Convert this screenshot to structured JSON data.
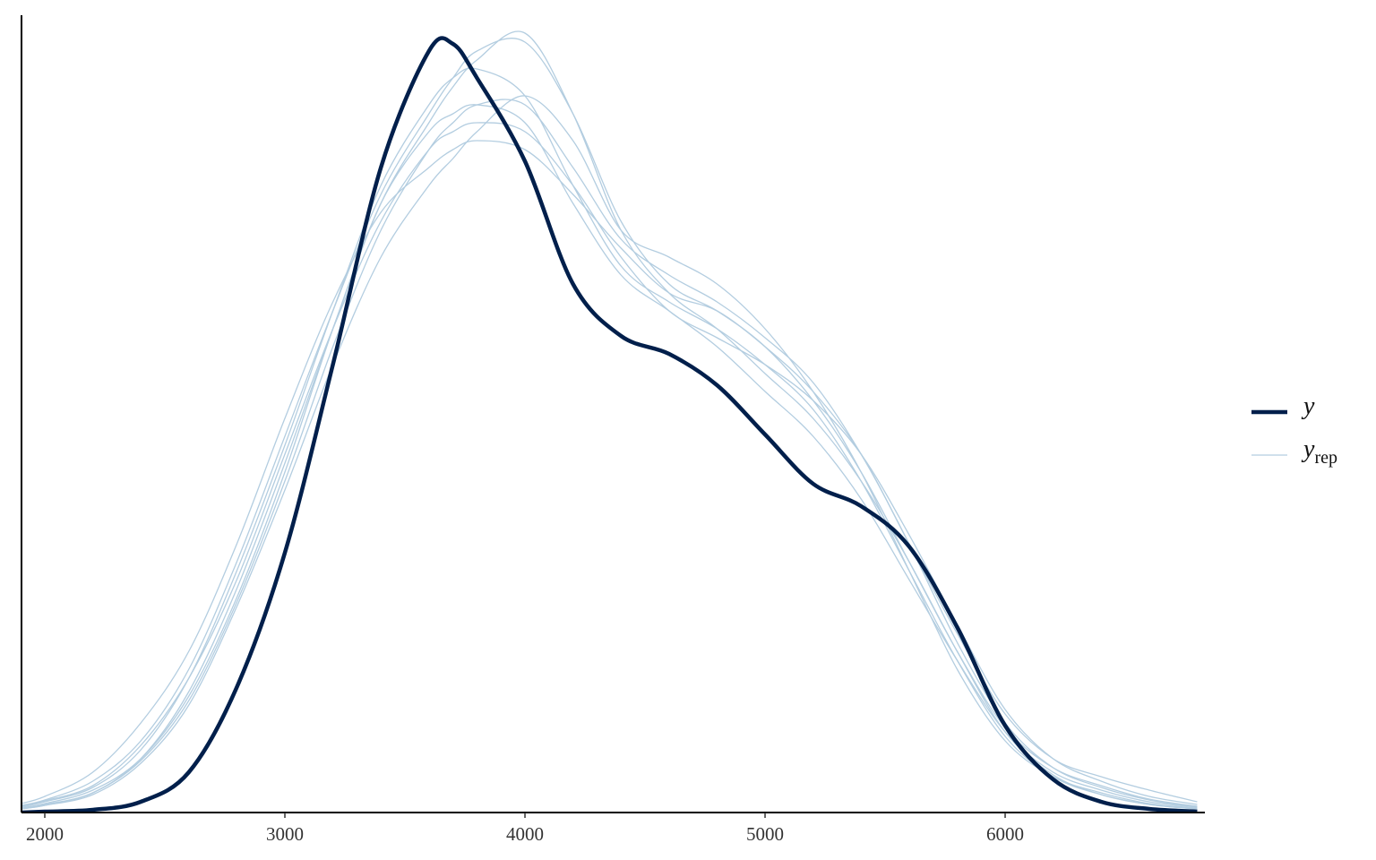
{
  "chart_data": {
    "type": "density",
    "x": [
      1900,
      2000,
      2200,
      2400,
      2600,
      2800,
      3000,
      3200,
      3400,
      3600,
      3700,
      3800,
      4000,
      4200,
      4400,
      4600,
      4800,
      5000,
      5200,
      5400,
      5600,
      5800,
      6000,
      6200,
      6400,
      6600,
      6800
    ],
    "xlim": [
      1903,
      6832
    ],
    "xticks": [
      2000,
      3000,
      4000,
      5000,
      6000
    ],
    "ylim": [
      0,
      0.000445
    ],
    "legend": "right",
    "series": [
      {
        "name": "y",
        "color": "#011f4b",
        "values": [
          0,
          5e-07,
          1.5e-06,
          6e-06,
          2.25e-05,
          7e-05,
          0.000145,
          0.00025,
          0.00036,
          0.000425,
          0.000429,
          0.00041,
          0.0003635,
          0.000295,
          0.000266,
          0.000256,
          0.0002385,
          0.000211,
          0.0001835,
          0.000171,
          0.0001485,
          0.0001035,
          4.85e-05,
          1.85e-05,
          6e-06,
          2e-06,
          5e-07
        ]
      },
      {
        "name": "y",
        "name_subscript": "rep",
        "color": "#b3cde0",
        "draws": [
          [
            2.5e-06,
            5e-06,
            1.25e-05,
            3e-05,
            6.5e-05,
            0.00012,
            0.00019,
            0.00027,
            0.00034,
            0.00038,
            0.00039,
            0.000395,
            0.000385,
            0.00034,
            0.0003,
            0.00028,
            0.00026,
            0.000235,
            0.00021,
            0.000175,
            0.00013,
            8.5e-05,
            4.5e-05,
            2.25e-05,
            1.25e-05,
            6e-06,
            3e-06
          ],
          [
            4e-06,
            7e-06,
            1.75e-05,
            4e-05,
            8e-05,
            0.00014,
            0.00021,
            0.00028,
            0.000345,
            0.00039,
            0.00041,
            0.000425,
            0.00043,
            0.00039,
            0.00033,
            0.000295,
            0.00028,
            0.00026,
            0.00023,
            0.00019,
            0.00014,
            9e-05,
            4.75e-05,
            2.5e-05,
            1.5e-05,
            7.5e-06,
            3.5e-06
          ],
          [
            2e-06,
            4e-06,
            1e-05,
            2.75e-05,
            6e-05,
            0.000115,
            0.00018,
            0.00025,
            0.00031,
            0.00035,
            0.000365,
            0.00038,
            0.0004,
            0.000375,
            0.000325,
            0.00031,
            0.000295,
            0.00027,
            0.000235,
            0.00019,
            0.000135,
            8e-05,
            4e-05,
            2e-05,
            1.1e-05,
            5e-06,
            2.5e-06
          ],
          [
            5e-06,
            9e-06,
            2.25e-05,
            5e-05,
            9e-05,
            0.00015,
            0.00022,
            0.000285,
            0.000335,
            0.00036,
            0.00037,
            0.000375,
            0.00037,
            0.000345,
            0.000315,
            0.00029,
            0.00028,
            0.00026,
            0.000235,
            0.0002,
            0.00015,
            0.0001,
            5.5e-05,
            3e-05,
            2e-05,
            1.25e-05,
            6e-06
          ],
          [
            3e-06,
            6e-06,
            1.4e-05,
            3.5e-05,
            7.5e-05,
            0.000135,
            0.000205,
            0.00028,
            0.00035,
            0.000395,
            0.00041,
            0.000415,
            0.0004,
            0.00035,
            0.000305,
            0.000285,
            0.00027,
            0.00025,
            0.000225,
            0.000185,
            0.000135,
            8.5e-05,
            4.25e-05,
            2e-05,
            1e-05,
            4.5e-06,
            2e-06
          ],
          [
            2.5e-06,
            4.5e-06,
            1.1e-05,
            2.9e-05,
            6.25e-05,
            0.0001175,
            0.000185,
            0.00026,
            0.000325,
            0.00037,
            0.000385,
            0.000395,
            0.000395,
            0.00036,
            0.00032,
            0.0003,
            0.000285,
            0.000265,
            0.00024,
            0.0002,
            0.00015,
            9.5e-05,
            5e-05,
            2.5e-05,
            1.4e-05,
            7e-06,
            3e-06
          ],
          [
            3.5e-06,
            6.5e-06,
            1.5e-05,
            3.75e-05,
            7.5e-05,
            0.00013,
            0.0002,
            0.00027,
            0.00033,
            0.00037,
            0.00038,
            0.000385,
            0.00038,
            0.00035,
            0.00031,
            0.00028,
            0.000265,
            0.00025,
            0.00023,
            0.0002,
            0.000155,
            0.000105,
            5.75e-05,
            3e-05,
            1.75e-05,
            9e-06,
            4.5e-06
          ],
          [
            2e-06,
            4e-06,
            1.1e-05,
            3e-05,
            6.75e-05,
            0.000125,
            0.000195,
            0.00027,
            0.00034,
            0.000385,
            0.000405,
            0.00042,
            0.000435,
            0.00039,
            0.000325,
            0.00029,
            0.00027,
            0.000245,
            0.00022,
            0.000185,
            0.00014,
            9e-05,
            4.5e-05,
            2.1e-05,
            1e-05,
            4.5e-06,
            2e-06
          ]
        ]
      }
    ]
  }
}
